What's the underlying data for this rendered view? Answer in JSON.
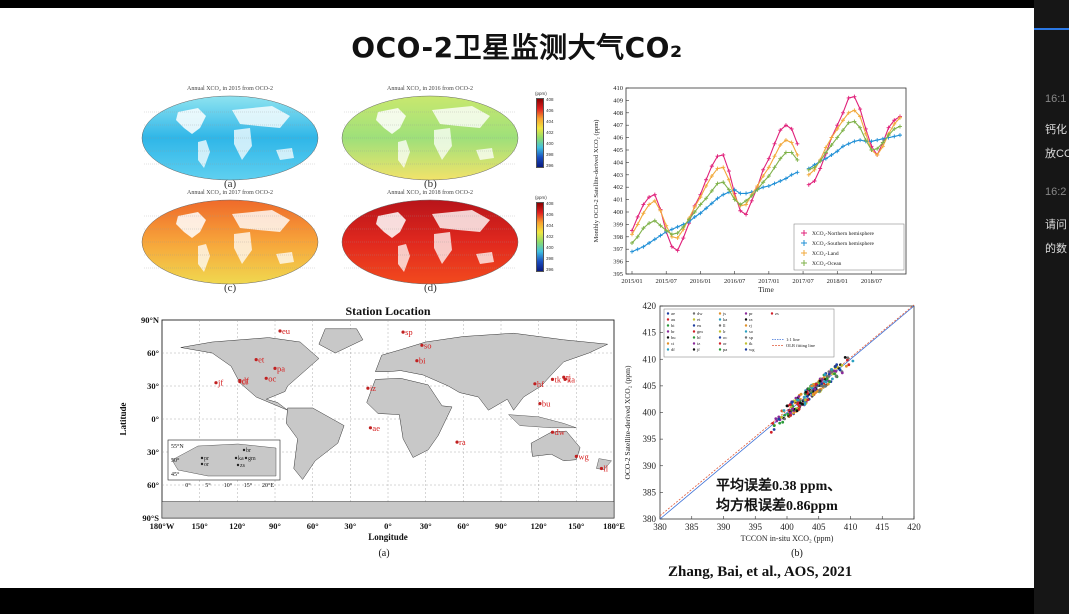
{
  "slide": {
    "title": "OCO-2卫星监测大气CO₂",
    "citation": "Zhang, Bai,  et al., AOS, 2021"
  },
  "maps": [
    {
      "caption": "Annual XCO₂ in 2015 from OCO-2",
      "label": "(a)",
      "ticks": [
        "408",
        "406",
        "404",
        "402",
        "400",
        "398",
        "396"
      ]
    },
    {
      "caption": "Annual XCO₂ in 2016 from OCO-2",
      "label": "(b)",
      "ticks": [
        "408",
        "406",
        "404",
        "402",
        "400",
        "398",
        "396"
      ]
    },
    {
      "caption": "Annual XCO₂ in 2017 from OCO-2",
      "label": "(c)",
      "ticks": [
        "408",
        "406",
        "404",
        "402",
        "400",
        "398",
        "396"
      ]
    },
    {
      "caption": "Annual XCO₂ in 2018 from OCO-2",
      "label": "(d)",
      "ticks": [
        "408",
        "406",
        "404",
        "402",
        "400",
        "398",
        "396"
      ]
    }
  ],
  "colorbar_unit": "(ppm)",
  "station_map": {
    "title": "Station Location",
    "xlabel": "Longitude",
    "ylabel": "Latitude",
    "label": "(a)",
    "lat_ticks": [
      "90°N",
      "60°",
      "30°",
      "0°",
      "30°",
      "60°",
      "90°S"
    ],
    "lon_ticks": [
      "180°W",
      "150°",
      "120°",
      "90°",
      "60°",
      "30°",
      "0°",
      "30°",
      "60°",
      "90°",
      "120°",
      "150°",
      "180°E"
    ],
    "stations": [
      "eu",
      "sp",
      "so",
      "et",
      "bi",
      "pa",
      "df",
      "oc",
      "ci",
      "jf",
      "iz",
      "hf",
      "ka",
      "rj",
      "tk",
      "bu",
      "ae",
      "ra",
      "dw",
      "wg",
      "ll"
    ],
    "inset": {
      "lat_ticks": [
        "55°N",
        "50°",
        "45°"
      ],
      "lon_ticks": [
        "0°",
        "5°",
        "10°",
        "15°",
        "20°E"
      ],
      "stations": [
        "br",
        "ka",
        "gm",
        "pr",
        "or",
        "zs"
      ]
    }
  },
  "chart_data": [
    {
      "type": "line",
      "title": "",
      "xlabel": "Time",
      "ylabel": "Monthly OCO-2 Satellite-derived XCO₂ (ppm)",
      "ylim": [
        395,
        410
      ],
      "yticks": [
        395,
        396,
        397,
        398,
        399,
        400,
        401,
        402,
        403,
        404,
        405,
        406,
        407,
        408,
        409,
        410
      ],
      "xticks": [
        "2015/01",
        "2015/07",
        "2016/01",
        "2016/07",
        "2017/01",
        "2017/07",
        "2018/01",
        "2018/07"
      ],
      "x": [
        0,
        1,
        2,
        3,
        4,
        5,
        6,
        7,
        8,
        9,
        10,
        11,
        12,
        13,
        14,
        15,
        16,
        17,
        18,
        19,
        20,
        21,
        22,
        23,
        24,
        25,
        26,
        27,
        28,
        29,
        30,
        31,
        32,
        33,
        34,
        35,
        36,
        37,
        38,
        39,
        40,
        41,
        42,
        43,
        44,
        45,
        46,
        47
      ],
      "legend": "lower right",
      "series": [
        {
          "name": "XCO₂-Northern hemisphere",
          "color": "#e0207a",
          "values": [
            398.5,
            399.6,
            400.6,
            401.2,
            401.4,
            400.2,
            398.4,
            397.2,
            396.9,
            397.9,
            399.1,
            400.5,
            401.4,
            402.6,
            403.7,
            404.5,
            404.6,
            403.3,
            401.5,
            400.1,
            399.8,
            400.9,
            402.0,
            403.4,
            404.3,
            405.5,
            406.6,
            407.0,
            406.7,
            405.5,
            null,
            402.2,
            402.5,
            403.5,
            404.7,
            406.0,
            407.0,
            408.0,
            409.2,
            409.3,
            408.3,
            406.7,
            405.3,
            404.6,
            405.6,
            406.8,
            407.4,
            407.7
          ]
        },
        {
          "name": "XCO₂-Southern hemisphere",
          "color": "#1f8fd6",
          "values": [
            396.8,
            397.0,
            397.2,
            397.5,
            397.8,
            398.1,
            398.4,
            398.6,
            398.8,
            399.0,
            399.2,
            399.6,
            399.9,
            400.3,
            400.7,
            401.1,
            401.4,
            401.6,
            401.8,
            401.5,
            401.5,
            401.6,
            401.8,
            402.0,
            402.1,
            402.3,
            402.5,
            402.7,
            403.0,
            403.2,
            null,
            403.5,
            403.8,
            404.1,
            404.3,
            404.6,
            404.9,
            405.3,
            405.5,
            405.7,
            405.8,
            405.7,
            405.7,
            405.8,
            405.9,
            406.0,
            406.1,
            406.2
          ]
        },
        {
          "name": "XCO₂-Land",
          "color": "#f2a93b",
          "values": [
            398.2,
            399.0,
            399.9,
            400.6,
            400.9,
            400.1,
            398.9,
            398.0,
            397.9,
            398.6,
            399.5,
            400.4,
            401.2,
            402.1,
            402.9,
            403.5,
            403.6,
            402.6,
            401.2,
            400.5,
            400.6,
            401.4,
            402.1,
            402.9,
            403.6,
            404.5,
            405.4,
            405.8,
            405.6,
            404.6,
            null,
            403.0,
            403.4,
            404.2,
            405.2,
            406.0,
            406.7,
            407.4,
            408.0,
            408.2,
            407.7,
            406.3,
            405.0,
            404.6,
            405.3,
            406.3,
            407.1,
            407.6
          ]
        },
        {
          "name": "XCO₂-Ocean",
          "color": "#7fb24a",
          "values": [
            397.5,
            398.0,
            398.7,
            399.1,
            399.3,
            398.9,
            398.5,
            398.2,
            398.3,
            398.8,
            399.4,
            400.0,
            400.6,
            401.1,
            401.7,
            402.3,
            402.4,
            401.8,
            401.0,
            400.6,
            400.9,
            401.3,
            401.8,
            402.4,
            402.9,
            403.6,
            404.3,
            404.8,
            404.8,
            404.2,
            null,
            403.4,
            403.6,
            404.1,
            404.8,
            405.4,
            406.0,
            406.6,
            407.2,
            407.3,
            406.8,
            405.8,
            405.0,
            405.1,
            405.6,
            406.2,
            406.7,
            406.9
          ]
        }
      ]
    },
    {
      "type": "scatter",
      "title": "",
      "xlabel": "TCCON in-situ XCO₂ (ppm)",
      "ylabel": "OCO-2 Satellite-derived XCO₂ (ppm)",
      "xlim": [
        380,
        420
      ],
      "ylim": [
        380,
        420
      ],
      "xticks": [
        380,
        385,
        390,
        395,
        400,
        405,
        410,
        415,
        420
      ],
      "yticks": [
        380,
        385,
        390,
        395,
        400,
        405,
        410,
        415,
        420
      ],
      "stations_legend": [
        "ae",
        "au",
        "bi",
        "br",
        "bu",
        "ci",
        "df",
        "dw",
        "et",
        "eu",
        "gm",
        "hf",
        "iz",
        "jf",
        "js",
        "ka",
        "ll",
        "lr",
        "oc",
        "or",
        "pa",
        "pr",
        "ra",
        "rj",
        "so",
        "sp",
        "tk",
        "wg",
        "zs"
      ],
      "fit_lines": [
        "1:1 line",
        "OLR fitting line"
      ],
      "annotation": [
        "平均误差0.38 ppm、",
        "均方根误差0.86ppm"
      ],
      "label": "(b)"
    }
  ],
  "sidebar": {
    "times": [
      "16:1",
      "16:2"
    ],
    "texts": [
      "钙化",
      "放CO",
      "请问",
      "的数"
    ]
  }
}
